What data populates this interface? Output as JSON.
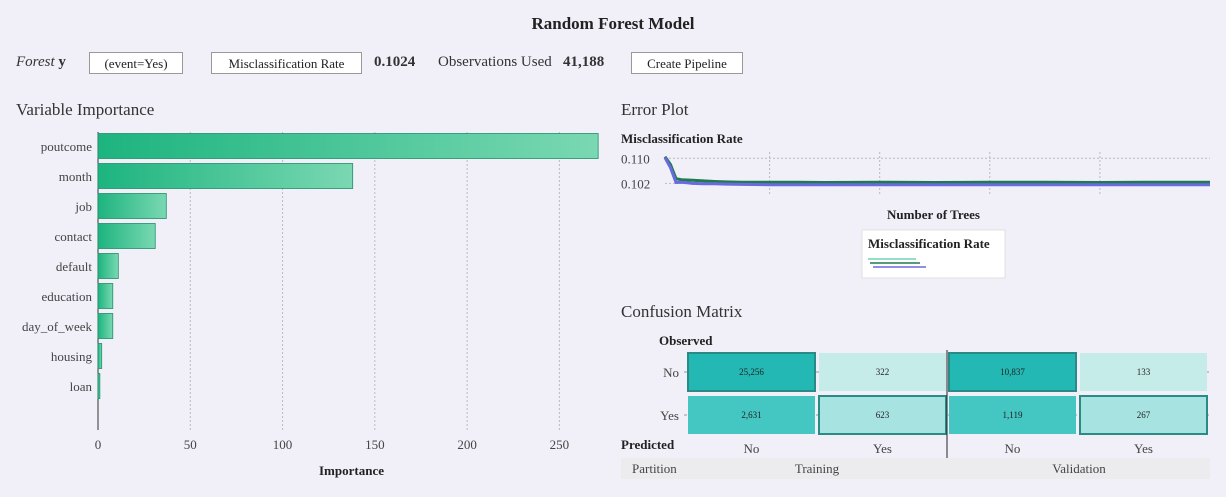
{
  "header": {
    "title": "Random Forest Model",
    "forest_label": "Forest",
    "target_var": "y",
    "event_label": "(event=Yes)",
    "metric_button": "Misclassification Rate",
    "metric_value": "0.1024",
    "obs_label": "Observations Used",
    "obs_value": "41,188",
    "pipeline_button": "Create Pipeline"
  },
  "colors": {
    "bar_dark": "#1db47f",
    "bar_light": "#7ad8b2",
    "train_line": "#1f7a4e",
    "valid_line": "#6a6ae0",
    "cm_dark": "#24b8b4",
    "cm_mid": "#44c6c2",
    "cm_light": "#a6e3e1",
    "cm_pale": "#c6ecea",
    "cm_border": "#2a8a86"
  },
  "sections": {
    "variable_importance": "Variable Importance",
    "error_plot": "Error Plot",
    "confusion_matrix": "Confusion Matrix"
  },
  "chart_data": [
    {
      "type": "bar",
      "orientation": "horizontal",
      "title": "Variable Importance",
      "categories": [
        "poutcome",
        "month",
        "job",
        "contact",
        "default",
        "education",
        "day_of_week",
        "housing",
        "loan"
      ],
      "values": [
        271,
        138,
        37,
        31,
        11,
        8,
        8,
        2,
        1
      ],
      "xlabel": "Importance",
      "xlim": [
        0,
        272
      ],
      "xticks": [
        0,
        50,
        100,
        150,
        200,
        250
      ],
      "grid": true
    },
    {
      "type": "line",
      "title": "Error Plot",
      "ylabel": "Misclassification Rate",
      "xlabel": "Number of Trees",
      "ylim": [
        0.098,
        0.112
      ],
      "yticks": [
        0.11,
        0.102
      ],
      "ytick_labels": [
        "0.110",
        "0.102"
      ],
      "xlim": [
        1,
        100
      ],
      "series": [
        {
          "role": "training",
          "x": [
            1,
            2,
            3,
            4,
            5,
            6,
            8,
            10,
            12,
            15,
            20,
            25,
            30,
            40,
            50,
            60,
            70,
            80,
            90,
            100
          ],
          "values": [
            0.1105,
            0.108,
            0.1035,
            0.1032,
            0.1031,
            0.103,
            0.1028,
            0.1026,
            0.1025,
            0.1024,
            0.1024,
            0.1024,
            0.1023,
            0.1024,
            0.1023,
            0.1024,
            0.1024,
            0.1023,
            0.1024,
            0.1024
          ]
        },
        {
          "role": "validation",
          "x": [
            1,
            2,
            3,
            4,
            5,
            6,
            8,
            10,
            12,
            15,
            20,
            25,
            30,
            40,
            50,
            60,
            70,
            80,
            90,
            100
          ],
          "values": [
            0.1102,
            0.107,
            0.1023,
            0.1024,
            0.1022,
            0.102,
            0.1019,
            0.1019,
            0.1018,
            0.1017,
            0.1016,
            0.1016,
            0.1016,
            0.1016,
            0.1016,
            0.1016,
            0.1016,
            0.1016,
            0.1016,
            0.1016
          ]
        }
      ],
      "legend": {
        "title": "Misclassification Rate",
        "placement": "bottom-center"
      }
    },
    {
      "type": "heatmap",
      "title": "Confusion Matrix",
      "observed_label": "Observed",
      "predicted_label": "Predicted",
      "partition_label": "Partition",
      "row_labels": [
        "No",
        "Yes"
      ],
      "col_labels": [
        "No",
        "Yes",
        "No",
        "Yes"
      ],
      "partitions": [
        "Training",
        "Validation"
      ],
      "cells": [
        [
          "25,256",
          "322",
          "10,837",
          "133"
        ],
        [
          "2,631",
          "623",
          "1,119",
          "267"
        ]
      ],
      "values": [
        [
          25256,
          322,
          10837,
          133
        ],
        [
          2631,
          623,
          1119,
          267
        ]
      ],
      "highlighted": [
        [
          true,
          false,
          true,
          false
        ],
        [
          false,
          true,
          false,
          true
        ]
      ]
    }
  ]
}
